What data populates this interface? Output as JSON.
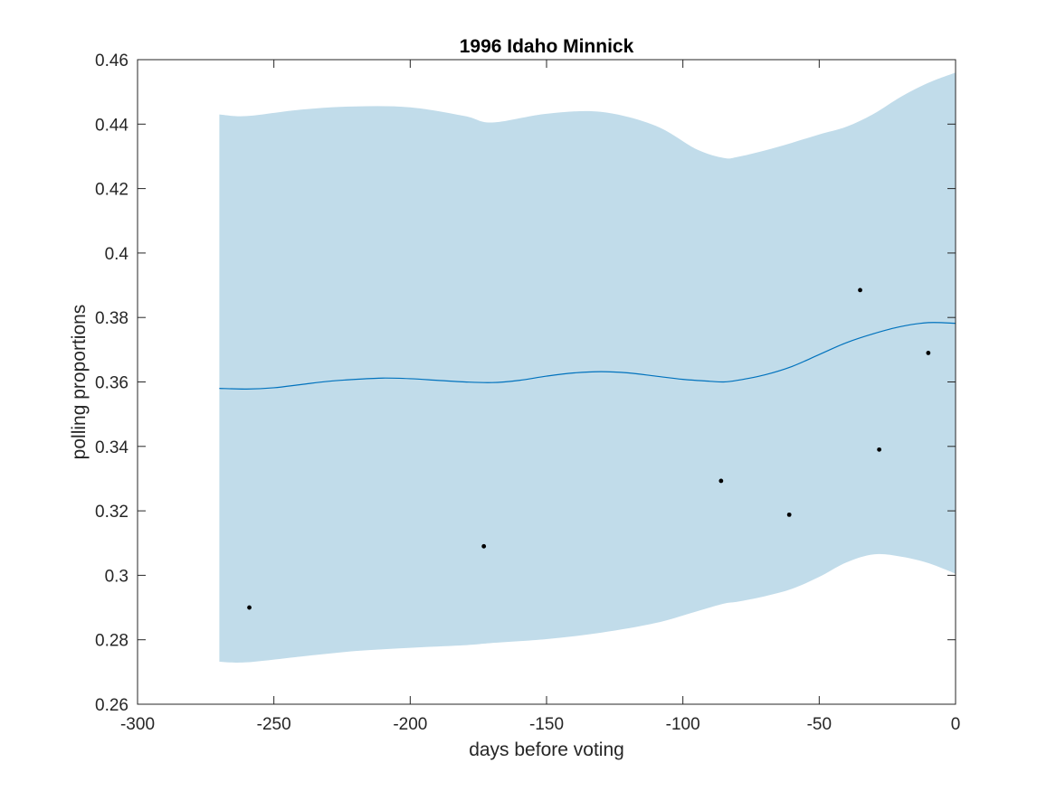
{
  "chart_data": {
    "type": "line",
    "title": "1996 Idaho Minnick",
    "xlabel": "days before voting",
    "ylabel": "polling proportions",
    "xlim": [
      -300,
      0
    ],
    "ylim": [
      0.26,
      0.46
    ],
    "xticks": [
      -300,
      -250,
      -200,
      -150,
      -100,
      -50,
      0
    ],
    "xtick_labels": [
      "-300",
      "-250",
      "-200",
      "-150",
      "-100",
      "-50",
      "0"
    ],
    "yticks": [
      0.26,
      0.28,
      0.3,
      0.32,
      0.34,
      0.36,
      0.38,
      0.4,
      0.42,
      0.44,
      0.46
    ],
    "ytick_labels": [
      "0.26",
      "0.28",
      "0.3",
      "0.32",
      "0.34",
      "0.36",
      "0.38",
      "0.4",
      "0.42",
      "0.44",
      "0.46"
    ],
    "grid": false,
    "colors": {
      "band": "#c1dcea",
      "line": "#0072bd",
      "points": "#000000",
      "axes": "#262626"
    },
    "series": [
      {
        "name": "confidence band upper",
        "x": [
          -270,
          -260,
          -240,
          -220,
          -200,
          -180,
          -170,
          -150,
          -130,
          -110,
          -95,
          -85,
          -80,
          -70,
          -60,
          -50,
          -40,
          -30,
          -20,
          -10,
          0
        ],
        "values": [
          0.443,
          0.4425,
          0.4445,
          0.4455,
          0.4452,
          0.4425,
          0.4405,
          0.4432,
          0.4438,
          0.4395,
          0.4322,
          0.4295,
          0.4298,
          0.4318,
          0.4342,
          0.4368,
          0.4392,
          0.4432,
          0.4485,
          0.4528,
          0.456
        ]
      },
      {
        "name": "confidence band lower",
        "x": [
          -270,
          -260,
          -240,
          -220,
          -200,
          -180,
          -170,
          -150,
          -130,
          -110,
          -95,
          -85,
          -80,
          -70,
          -60,
          -50,
          -40,
          -30,
          -20,
          -10,
          0
        ],
        "values": [
          0.2732,
          0.273,
          0.2748,
          0.2765,
          0.2775,
          0.2783,
          0.279,
          0.2802,
          0.2822,
          0.2852,
          0.2888,
          0.2912,
          0.2918,
          0.2935,
          0.2958,
          0.2995,
          0.304,
          0.3065,
          0.3058,
          0.3038,
          0.3005
        ]
      },
      {
        "name": "fit",
        "x": [
          -270,
          -260,
          -250,
          -240,
          -230,
          -220,
          -210,
          -200,
          -190,
          -180,
          -170,
          -160,
          -150,
          -140,
          -130,
          -120,
          -110,
          -100,
          -90,
          -85,
          -80,
          -70,
          -60,
          -50,
          -40,
          -30,
          -20,
          -10,
          0
        ],
        "values": [
          0.358,
          0.3578,
          0.3582,
          0.3592,
          0.3602,
          0.3608,
          0.3612,
          0.361,
          0.3605,
          0.36,
          0.3598,
          0.3605,
          0.3618,
          0.3628,
          0.3632,
          0.3628,
          0.3618,
          0.3608,
          0.3602,
          0.36,
          0.3605,
          0.3622,
          0.3648,
          0.3685,
          0.3722,
          0.375,
          0.3772,
          0.3784,
          0.3782
        ]
      },
      {
        "name": "polls",
        "x": [
          -259,
          -173,
          -86,
          -61,
          -35,
          -28,
          -10
        ],
        "values": [
          0.29,
          0.309,
          0.3293,
          0.3188,
          0.3885,
          0.339,
          0.369
        ]
      }
    ]
  }
}
